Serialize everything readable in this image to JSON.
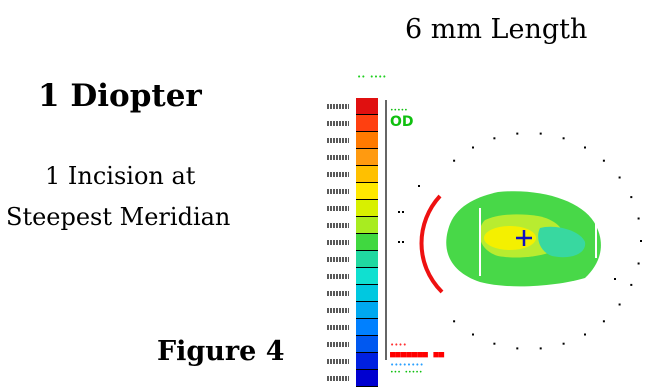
{
  "figure": {
    "length_label": "6 mm Length",
    "diopter_label": "1 Diopter",
    "incision_line1": "1 Incision at",
    "incision_line2": "Steepest Meridian",
    "figure_label": "Figure 4"
  },
  "map": {
    "eye": "OD",
    "scale_colors": [
      "#e01010",
      "#ff4010",
      "#ff7a00",
      "#ff9a10",
      "#ffc000",
      "#ffe800",
      "#d8f000",
      "#a8ec20",
      "#40d840",
      "#20d8a0",
      "#10e0d0",
      "#00c8e0",
      "#00a8f0",
      "#0080ff",
      "#0058f0",
      "#0020e0",
      "#0000d0"
    ],
    "colors": {
      "incision": "#ee1111",
      "center_cross": "#1010c0"
    }
  }
}
